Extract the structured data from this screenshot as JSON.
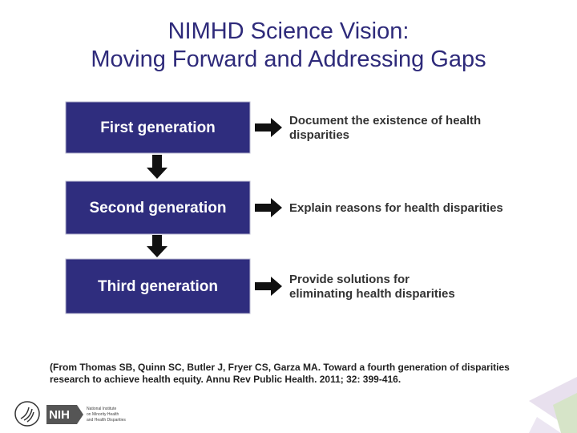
{
  "header": {
    "title_lines": [
      "NIMHD Science Vision:",
      "Moving Forward and Addressing Gaps"
    ]
  },
  "generations": [
    {
      "label": "First  generation",
      "description": [
        "Document the existence of health",
        "disparities"
      ]
    },
    {
      "label": "Second  generation",
      "description": [
        "Explain reasons for health disparities"
      ]
    },
    {
      "label": "Third  generation",
      "description": [
        "Provide solutions for",
        "eliminating health disparities"
      ]
    }
  ],
  "citation": [
    "(From Thomas SB, Quinn SC, Butler J, Fryer CS, Garza MA. Toward a fourth generation of disparities",
    "research to achieve health equity. Annu Rev Public Health. 2011; 32: 399-416."
  ],
  "footer": {
    "logo": "NIH",
    "institute_lines": [
      "National Institute",
      "on Minority Health",
      "and Health Disparities"
    ]
  }
}
